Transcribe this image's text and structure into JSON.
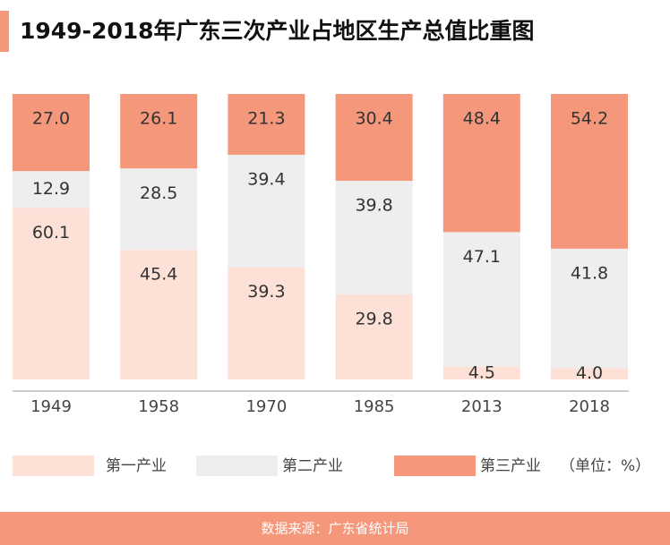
{
  "chart_data": {
    "type": "stacked_bar",
    "title": "1949-2018年广东三次产业占地区生产总值比重图",
    "categories": [
      "1949",
      "1958",
      "1970",
      "1985",
      "2013",
      "2018"
    ],
    "series": [
      {
        "name": "第一产业",
        "color": "#fde0d6",
        "values": [
          60.1,
          45.4,
          39.3,
          29.8,
          4.5,
          4.0
        ],
        "value_labels": [
          "60.1",
          "45.4",
          "39.3",
          "29.8",
          "4.5",
          "4.0"
        ]
      },
      {
        "name": "第二产业",
        "color": "#eeeeee",
        "values": [
          12.9,
          28.5,
          39.4,
          39.8,
          47.1,
          41.8
        ],
        "value_labels": [
          "12.9",
          "28.5",
          "39.4",
          "39.8",
          "47.1",
          "41.8"
        ]
      },
      {
        "name": "第三产业",
        "color": "#f5977a",
        "values": [
          27.0,
          26.1,
          21.3,
          30.4,
          48.4,
          54.2
        ],
        "value_labels": [
          "27.0",
          "26.1",
          "21.3",
          "30.4",
          "48.4",
          "54.2"
        ]
      }
    ],
    "ylim": [
      0,
      100
    ],
    "unit": "（单位：%）",
    "source": "数据来源：广东省统计局"
  }
}
